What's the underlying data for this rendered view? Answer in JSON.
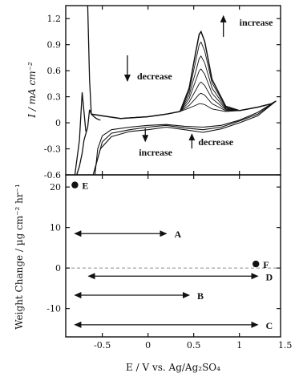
{
  "chart_data": [
    {
      "type": "line",
      "panel": "top",
      "ylabel": "I / mA cm⁻²",
      "xlim": [
        -0.9,
        1.45
      ],
      "ylim": [
        -0.6,
        1.35
      ],
      "x_ticks": [
        "-0.5",
        "0",
        "0.5",
        "1",
        "1.5"
      ],
      "y_ticks": [
        "1.2",
        "0.9",
        "0.6",
        "0.3",
        "0",
        "-0.3",
        "-0.6"
      ],
      "annotations": [
        {
          "text": "increase",
          "x": 1.0,
          "y": 1.12,
          "arrow": "up"
        },
        {
          "text": "decrease",
          "x": -0.12,
          "y": 0.5,
          "arrow": "down"
        },
        {
          "text": "increase",
          "x": -0.1,
          "y": -0.38,
          "arrow": "down"
        },
        {
          "text": "decrease",
          "x": 0.55,
          "y": -0.26,
          "arrow": "up"
        }
      ],
      "series": [
        {
          "x": [
            -0.62,
            -0.5,
            -0.3,
            0,
            0.2,
            0.35,
            0.45,
            0.52,
            0.56,
            0.58,
            0.62,
            0.7,
            0.85,
            1.0,
            1.2,
            1.35,
            1.4
          ],
          "y": [
            0.1,
            0.08,
            0.05,
            0.07,
            0.1,
            0.13,
            0.17,
            0.2,
            0.22,
            0.22,
            0.21,
            0.16,
            0.13,
            0.14,
            0.18,
            0.22,
            0.25
          ]
        },
        {
          "x": [
            -0.62,
            -0.5,
            -0.3,
            0,
            0.2,
            0.35,
            0.45,
            0.52,
            0.56,
            0.58,
            0.62,
            0.7,
            0.85,
            1.0,
            1.2,
            1.35,
            1.4
          ],
          "y": [
            0.1,
            0.08,
            0.05,
            0.07,
            0.1,
            0.13,
            0.2,
            0.28,
            0.33,
            0.34,
            0.32,
            0.22,
            0.14,
            0.14,
            0.18,
            0.22,
            0.25
          ]
        },
        {
          "x": [
            -0.62,
            -0.5,
            -0.3,
            0,
            0.2,
            0.35,
            0.45,
            0.52,
            0.56,
            0.58,
            0.62,
            0.7,
            0.85,
            1.0,
            1.2,
            1.35,
            1.4
          ],
          "y": [
            0.1,
            0.08,
            0.05,
            0.07,
            0.1,
            0.13,
            0.24,
            0.37,
            0.45,
            0.47,
            0.43,
            0.28,
            0.15,
            0.14,
            0.18,
            0.22,
            0.25
          ]
        },
        {
          "x": [
            -0.62,
            -0.5,
            -0.3,
            0,
            0.2,
            0.35,
            0.45,
            0.52,
            0.56,
            0.58,
            0.62,
            0.7,
            0.85,
            1.0,
            1.2,
            1.35,
            1.4
          ],
          "y": [
            0.1,
            0.08,
            0.05,
            0.07,
            0.1,
            0.13,
            0.28,
            0.48,
            0.6,
            0.62,
            0.56,
            0.34,
            0.16,
            0.14,
            0.18,
            0.22,
            0.25
          ]
        },
        {
          "x": [
            -0.62,
            -0.5,
            -0.3,
            0,
            0.2,
            0.35,
            0.45,
            0.52,
            0.56,
            0.58,
            0.62,
            0.7,
            0.85,
            1.0,
            1.2,
            1.35,
            1.4
          ],
          "y": [
            0.1,
            0.08,
            0.05,
            0.07,
            0.1,
            0.13,
            0.32,
            0.58,
            0.74,
            0.77,
            0.69,
            0.4,
            0.17,
            0.14,
            0.18,
            0.22,
            0.25
          ]
        },
        {
          "x": [
            -0.62,
            -0.5,
            -0.3,
            0,
            0.2,
            0.35,
            0.45,
            0.52,
            0.56,
            0.58,
            0.62,
            0.7,
            0.85,
            1.0,
            1.2,
            1.35,
            1.4
          ],
          "y": [
            0.1,
            0.08,
            0.05,
            0.07,
            0.1,
            0.13,
            0.36,
            0.7,
            0.9,
            0.93,
            0.83,
            0.46,
            0.18,
            0.14,
            0.18,
            0.22,
            0.25
          ]
        },
        {
          "x": [
            -0.62,
            -0.5,
            -0.3,
            0,
            0.2,
            0.35,
            0.45,
            0.52,
            0.56,
            0.58,
            0.62,
            0.7,
            0.85,
            1.0,
            1.2,
            1.35,
            1.4
          ],
          "y": [
            0.1,
            0.08,
            0.05,
            0.07,
            0.1,
            0.13,
            0.4,
            0.8,
            1.02,
            1.05,
            0.94,
            0.5,
            0.19,
            0.14,
            0.18,
            0.22,
            0.25
          ]
        }
      ]
    },
    {
      "type": "scatter",
      "panel": "bottom",
      "xlabel": "E / V vs. Ag/Ag₂SO₄",
      "ylabel": "Weight Change / µg cm⁻² hr⁻¹",
      "xlim": [
        -0.9,
        1.45
      ],
      "ylim": [
        -17,
        23
      ],
      "x_ticks": [
        "-0.5",
        "0",
        "0.5",
        "1",
        "1.5"
      ],
      "y_ticks": [
        "20",
        "10",
        "0",
        "-10"
      ],
      "points": [
        {
          "label": "E",
          "x": -0.8,
          "y": 20.5
        },
        {
          "label": "F",
          "x": 1.18,
          "y": 1.0
        }
      ],
      "ranges": [
        {
          "label": "A",
          "x_start": -0.8,
          "x_end": 0.2,
          "y": 8.5
        },
        {
          "label": "D",
          "x_start": -0.65,
          "x_end": 1.2,
          "y": -2.0
        },
        {
          "label": "B",
          "x_start": -0.8,
          "x_end": 0.45,
          "y": -6.7
        },
        {
          "label": "C",
          "x_start": -0.8,
          "x_end": 1.2,
          "y": -14.0
        }
      ],
      "reference_line": {
        "y": 0,
        "style": "dashed"
      }
    }
  ]
}
